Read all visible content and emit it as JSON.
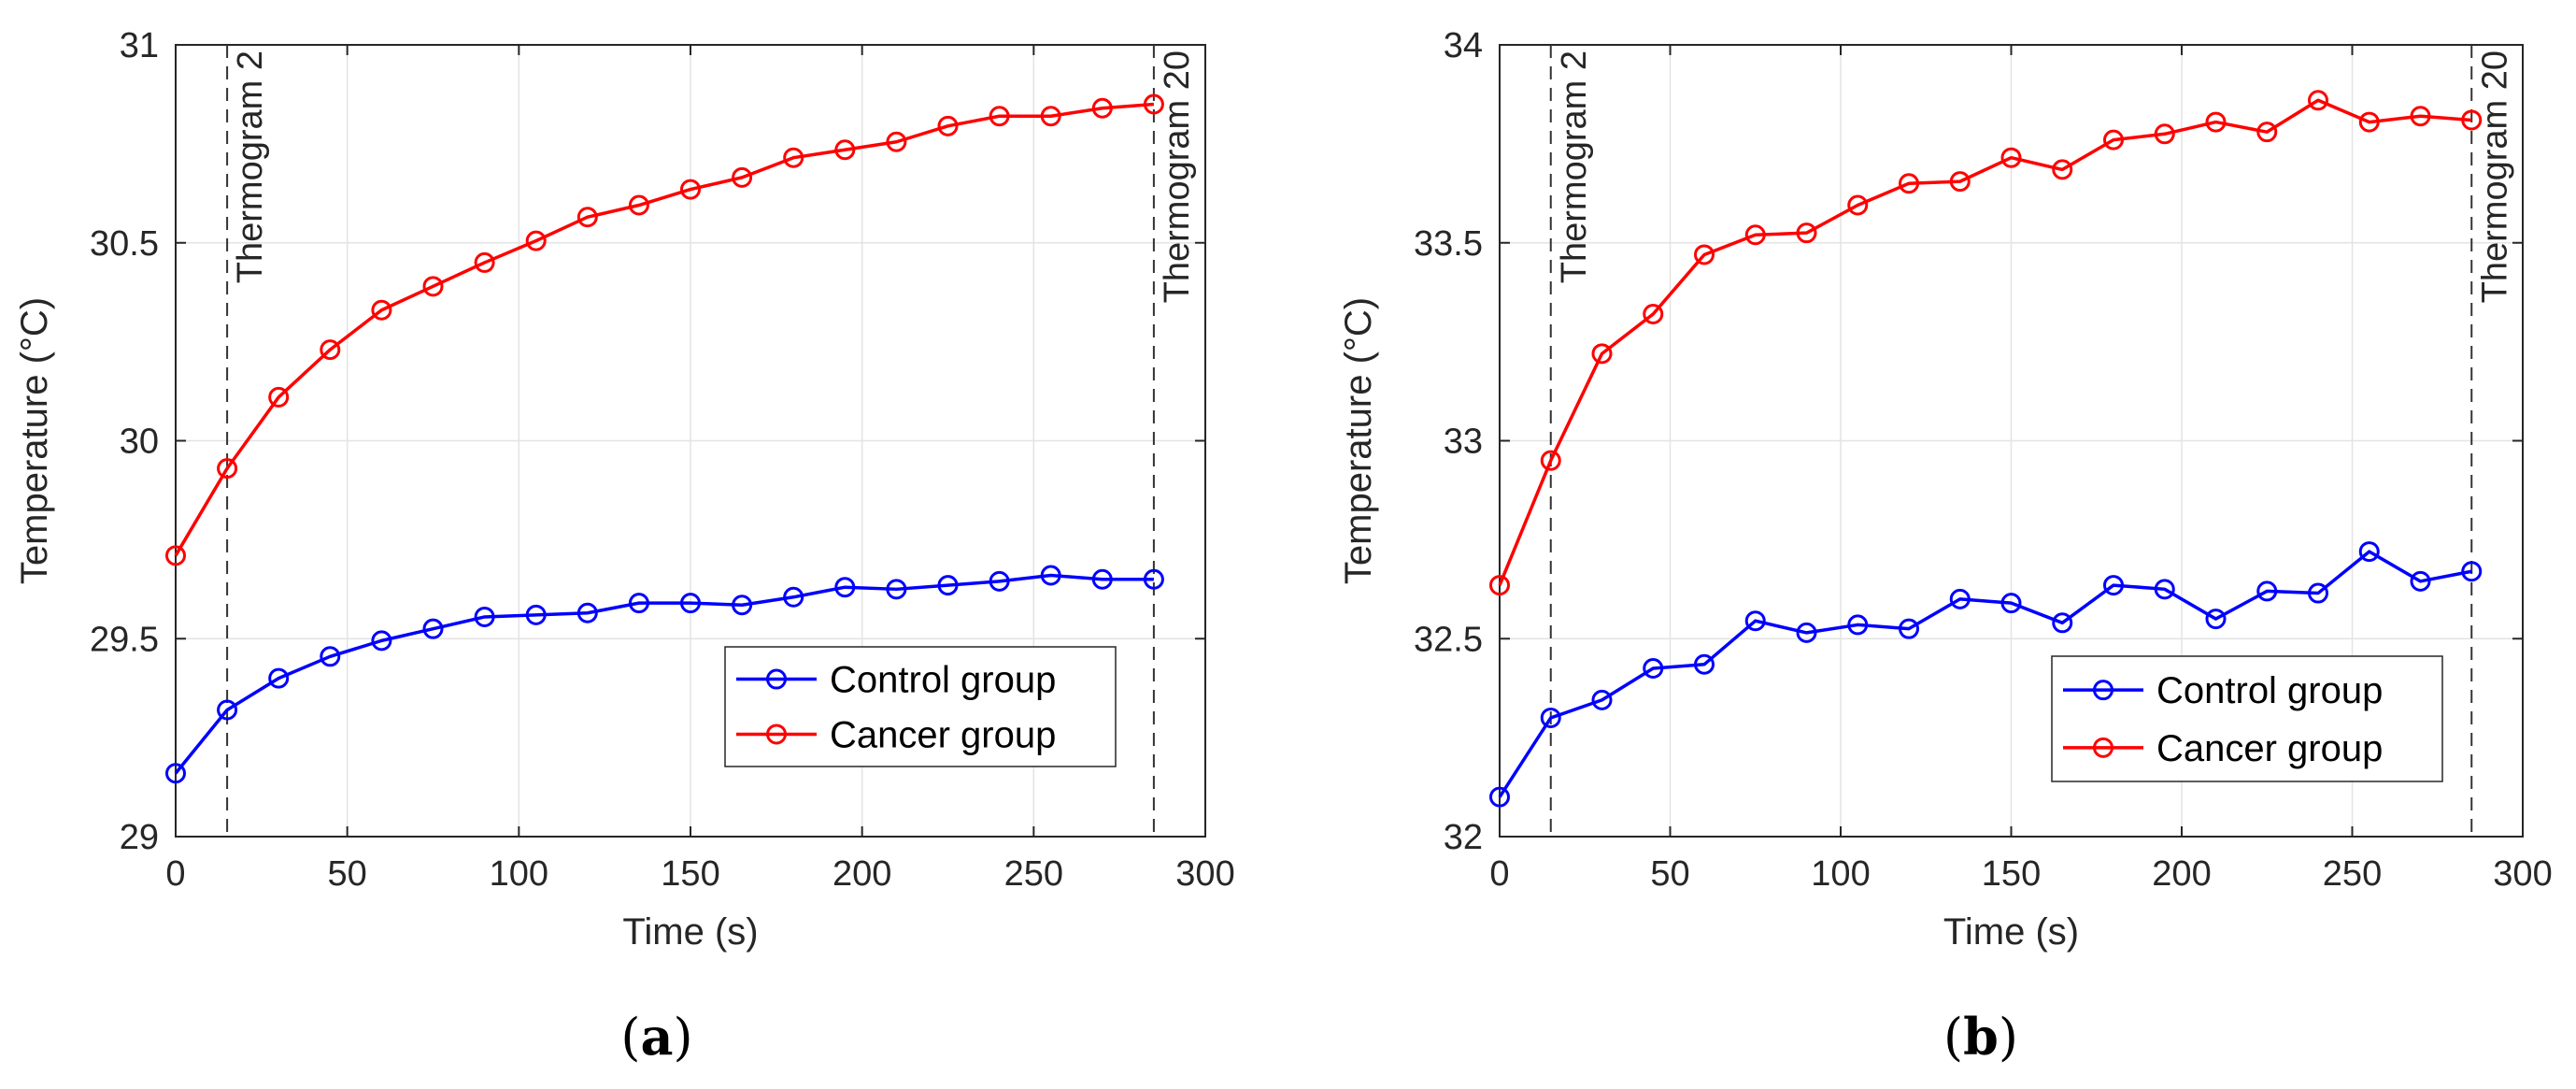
{
  "chart_data": [
    {
      "type": "line",
      "panel": "a",
      "xlabel": "Time (s)",
      "ylabel": "Temperature (°C)",
      "xlim": [
        0,
        300
      ],
      "ylim": [
        29,
        31
      ],
      "xticks": [
        0,
        50,
        100,
        150,
        200,
        250,
        300
      ],
      "yticks": [
        29,
        29.5,
        30,
        30.5,
        31
      ],
      "ytick_labels": [
        "29",
        "29.5",
        "30",
        "30.5",
        "31"
      ],
      "grid": true,
      "legend_position": "bottom-right",
      "x": [
        0,
        15,
        30,
        45,
        60,
        75,
        90,
        105,
        120,
        135,
        150,
        165,
        180,
        195,
        210,
        225,
        240,
        255,
        270,
        285
      ],
      "series": [
        {
          "name": "Control group",
          "color": "#0000ff",
          "values": [
            29.16,
            29.32,
            29.4,
            29.455,
            29.495,
            29.525,
            29.555,
            29.56,
            29.565,
            29.59,
            29.59,
            29.585,
            29.605,
            29.63,
            29.625,
            29.635,
            29.645,
            29.66,
            29.65,
            29.65
          ]
        },
        {
          "name": "Cancer group",
          "color": "#ff0000",
          "values": [
            29.71,
            29.93,
            30.11,
            30.23,
            30.33,
            30.39,
            30.45,
            30.505,
            30.565,
            30.595,
            30.635,
            30.665,
            30.715,
            30.735,
            30.755,
            30.795,
            30.82,
            30.82,
            30.84,
            30.85
          ]
        }
      ],
      "vlines": [
        {
          "x": 15,
          "label": "Thermogram 2"
        },
        {
          "x": 285,
          "label": "Thermogram 20"
        }
      ],
      "panel_label": {
        "open": "(",
        "letter": "a",
        "close": ")"
      }
    },
    {
      "type": "line",
      "panel": "b",
      "xlabel": "Time (s)",
      "ylabel": "Temperature (°C)",
      "xlim": [
        0,
        300
      ],
      "ylim": [
        32,
        34
      ],
      "xticks": [
        0,
        50,
        100,
        150,
        200,
        250,
        300
      ],
      "yticks": [
        32,
        32.5,
        33,
        33.5,
        34
      ],
      "ytick_labels": [
        "32",
        "32.5",
        "33",
        "33.5",
        "34"
      ],
      "grid": true,
      "legend_position": "bottom-right",
      "x": [
        0,
        15,
        30,
        45,
        60,
        75,
        90,
        105,
        120,
        135,
        150,
        165,
        180,
        195,
        210,
        225,
        240,
        255,
        270,
        285
      ],
      "series": [
        {
          "name": "Control group",
          "color": "#0000ff",
          "values": [
            32.1,
            32.3,
            32.345,
            32.425,
            32.435,
            32.545,
            32.515,
            32.535,
            32.525,
            32.6,
            32.59,
            32.54,
            32.635,
            32.625,
            32.55,
            32.62,
            32.615,
            32.72,
            32.645,
            32.67
          ]
        },
        {
          "name": "Cancer group",
          "color": "#ff0000",
          "values": [
            32.635,
            32.95,
            33.22,
            33.32,
            33.47,
            33.52,
            33.525,
            33.595,
            33.65,
            33.655,
            33.715,
            33.685,
            33.76,
            33.775,
            33.805,
            33.78,
            33.86,
            33.805,
            33.82,
            33.81
          ]
        }
      ],
      "vlines": [
        {
          "x": 15,
          "label": "Thermogram 2"
        },
        {
          "x": 285,
          "label": "Thermogram 20"
        }
      ],
      "panel_label": {
        "open": "(",
        "letter": "b",
        "close": ")"
      }
    }
  ]
}
